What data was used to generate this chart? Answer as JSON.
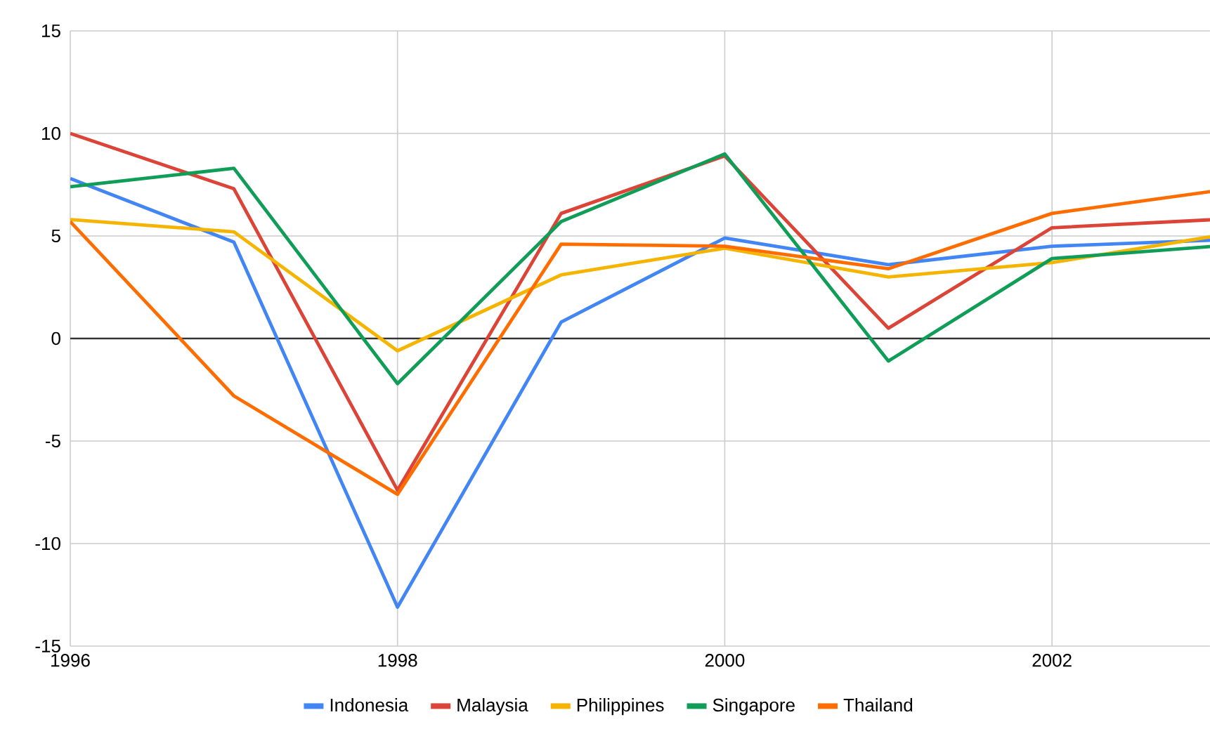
{
  "chart_data": {
    "type": "line",
    "x": [
      1996,
      1997,
      1998,
      1999,
      2000,
      2001,
      2002,
      2003
    ],
    "series": [
      {
        "name": "Indonesia",
        "color": "#4285f4",
        "values": [
          7.8,
          4.7,
          -13.1,
          0.8,
          4.9,
          3.6,
          4.5,
          4.8
        ]
      },
      {
        "name": "Malaysia",
        "color": "#db4437",
        "values": [
          10.0,
          7.3,
          -7.4,
          6.1,
          8.9,
          0.5,
          5.4,
          5.8
        ]
      },
      {
        "name": "Philippines",
        "color": "#f4b400",
        "values": [
          5.8,
          5.2,
          -0.6,
          3.1,
          4.4,
          3.0,
          3.7,
          5.0
        ]
      },
      {
        "name": "Singapore",
        "color": "#0f9d58",
        "values": [
          7.4,
          8.3,
          -2.2,
          5.7,
          9.0,
          -1.1,
          3.9,
          4.5
        ]
      },
      {
        "name": "Thailand",
        "color": "#ff6d01",
        "values": [
          5.7,
          -2.8,
          -7.6,
          4.6,
          4.5,
          3.4,
          6.1,
          7.2
        ]
      }
    ],
    "xlim": [
      1996,
      2003
    ],
    "xticks": [
      1996,
      1998,
      2000,
      2002
    ],
    "ylim": [
      -15,
      15
    ],
    "yticks": [
      -15,
      -10,
      -5,
      0,
      5,
      10,
      15
    ],
    "ref_lines": [
      {
        "axis": "y",
        "value": 0,
        "color": "#333333"
      }
    ],
    "grid": true,
    "legend": "bottom",
    "marker": "none",
    "line_style": "solid"
  }
}
